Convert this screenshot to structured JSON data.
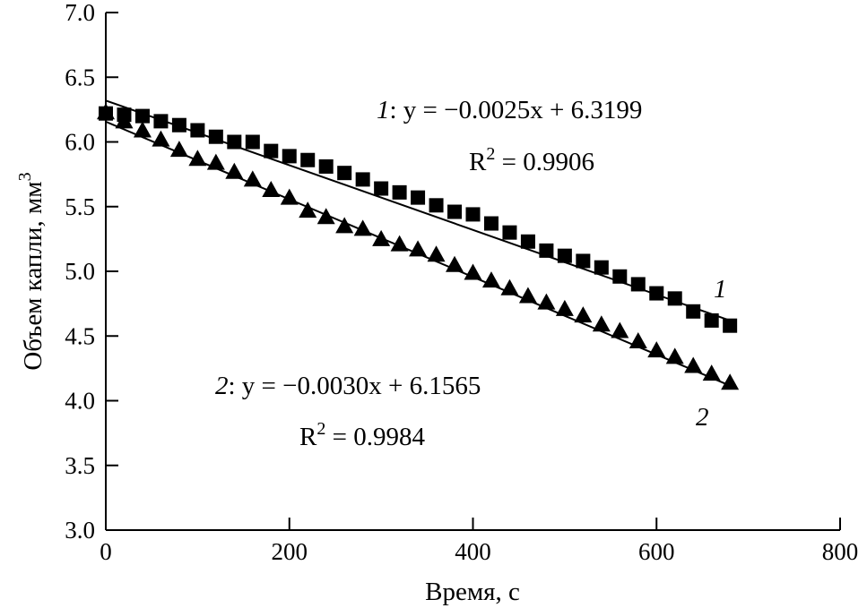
{
  "chart_data": {
    "type": "scatter",
    "xlabel": "Время, с",
    "ylabel": "Объем капли, мм",
    "ylabel_sup": "3",
    "xlim": [
      0,
      800
    ],
    "ylim": [
      3.0,
      7.0
    ],
    "xticks": [
      "0",
      "200",
      "400",
      "600",
      "800"
    ],
    "yticks": [
      "3.0",
      "3.5",
      "4.0",
      "4.5",
      "5.0",
      "5.5",
      "6.0",
      "6.5",
      "7.0"
    ],
    "grid": false,
    "series": [
      {
        "name": "1",
        "marker": "square",
        "color": "#000000",
        "x": [
          0,
          20,
          40,
          60,
          80,
          100,
          120,
          140,
          160,
          180,
          200,
          220,
          240,
          260,
          280,
          300,
          320,
          340,
          360,
          380,
          400,
          420,
          440,
          460,
          480,
          500,
          520,
          540,
          560,
          580,
          600,
          620,
          640,
          660,
          680
        ],
        "y": [
          6.22,
          6.21,
          6.2,
          6.16,
          6.13,
          6.09,
          6.04,
          6.0,
          6.0,
          5.93,
          5.89,
          5.86,
          5.81,
          5.76,
          5.71,
          5.64,
          5.61,
          5.57,
          5.51,
          5.46,
          5.44,
          5.37,
          5.3,
          5.23,
          5.16,
          5.12,
          5.08,
          5.03,
          4.96,
          4.9,
          4.83,
          4.79,
          4.69,
          4.62,
          4.58
        ],
        "fit": {
          "slope": -0.0025,
          "intercept": 6.3199,
          "x_range": [
            0,
            680
          ]
        },
        "equation_label": "1",
        "equation": ": y = −0.0025x + 6.3199",
        "r2_label": "R",
        "r2_value": " = 0.9906"
      },
      {
        "name": "2",
        "marker": "triangle",
        "color": "#000000",
        "x": [
          0,
          20,
          40,
          60,
          80,
          100,
          120,
          140,
          160,
          180,
          200,
          220,
          240,
          260,
          280,
          300,
          320,
          340,
          360,
          380,
          400,
          420,
          440,
          460,
          480,
          500,
          520,
          540,
          560,
          580,
          600,
          620,
          640,
          660,
          680
        ],
        "y": [
          6.23,
          6.16,
          6.09,
          6.02,
          5.94,
          5.87,
          5.84,
          5.77,
          5.71,
          5.63,
          5.57,
          5.47,
          5.42,
          5.35,
          5.33,
          5.25,
          5.21,
          5.17,
          5.13,
          5.05,
          4.99,
          4.93,
          4.87,
          4.81,
          4.76,
          4.71,
          4.66,
          4.59,
          4.54,
          4.46,
          4.39,
          4.34,
          4.27,
          4.21,
          4.14
        ],
        "fit": {
          "slope": -0.003,
          "intercept": 6.1565,
          "x_range": [
            0,
            680
          ]
        },
        "equation_label": "2",
        "equation": ": y = −0.0030x + 6.1565",
        "r2_label": "R",
        "r2_value": " = 0.9984"
      }
    ]
  }
}
